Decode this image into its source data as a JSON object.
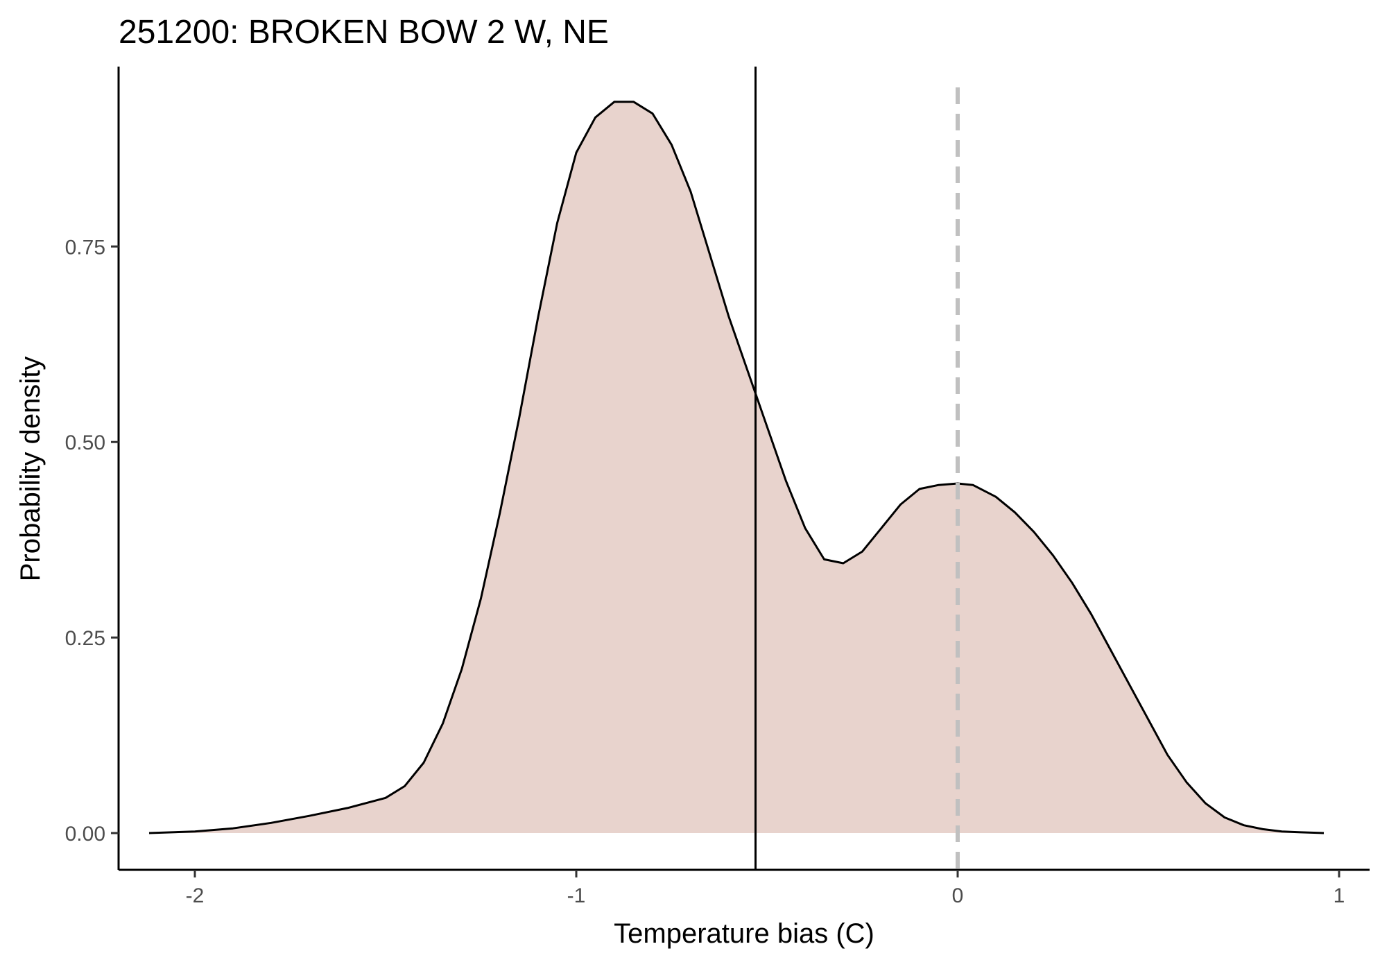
{
  "chart_data": {
    "type": "area",
    "title": "251200: BROKEN BOW 2 W, NE",
    "xlabel": "Temperature bias (C)",
    "ylabel": "Probability density",
    "xlim": [
      -2.2,
      1.08
    ],
    "ylim": [
      -0.047,
      0.98
    ],
    "x_ticks": [
      -2,
      -1,
      0,
      1
    ],
    "x_tick_labels": [
      "-2",
      "-1",
      "0",
      "1"
    ],
    "y_ticks": [
      0,
      0.25,
      0.5,
      0.75
    ],
    "y_tick_labels": [
      "0.00",
      "0.25",
      "0.50",
      "0.75"
    ],
    "grid": false,
    "fill_color": "#e8d3cd",
    "line_color": "#000000",
    "reference_line_color": "#c0c0c0",
    "series": [
      {
        "x": [
          -2.12,
          -2.0,
          -1.9,
          -1.8,
          -1.7,
          -1.6,
          -1.5,
          -1.45,
          -1.4,
          -1.35,
          -1.3,
          -1.25,
          -1.2,
          -1.15,
          -1.1,
          -1.05,
          -1.0,
          -0.95,
          -0.9,
          -0.85,
          -0.8,
          -0.75,
          -0.7,
          -0.65,
          -0.6,
          -0.55,
          -0.5,
          -0.45,
          -0.4,
          -0.35,
          -0.3,
          -0.25,
          -0.2,
          -0.15,
          -0.1,
          -0.05,
          0.0,
          0.04,
          0.1,
          0.15,
          0.2,
          0.25,
          0.3,
          0.35,
          0.4,
          0.45,
          0.5,
          0.55,
          0.6,
          0.65,
          0.7,
          0.75,
          0.8,
          0.85,
          0.9,
          0.96
        ],
        "values": [
          0.0,
          0.002,
          0.006,
          0.013,
          0.022,
          0.032,
          0.045,
          0.06,
          0.09,
          0.14,
          0.21,
          0.3,
          0.41,
          0.53,
          0.66,
          0.78,
          0.87,
          0.915,
          0.935,
          0.935,
          0.92,
          0.88,
          0.82,
          0.74,
          0.66,
          0.59,
          0.52,
          0.45,
          0.39,
          0.35,
          0.345,
          0.36,
          0.39,
          0.42,
          0.44,
          0.445,
          0.447,
          0.445,
          0.43,
          0.41,
          0.385,
          0.355,
          0.32,
          0.28,
          0.235,
          0.19,
          0.145,
          0.1,
          0.065,
          0.038,
          0.02,
          0.01,
          0.005,
          0.002,
          0.001,
          0.0
        ]
      }
    ],
    "vertical_lines": [
      {
        "x": -0.53,
        "style": "solid"
      },
      {
        "x": 0.0,
        "style": "dashed"
      }
    ]
  }
}
